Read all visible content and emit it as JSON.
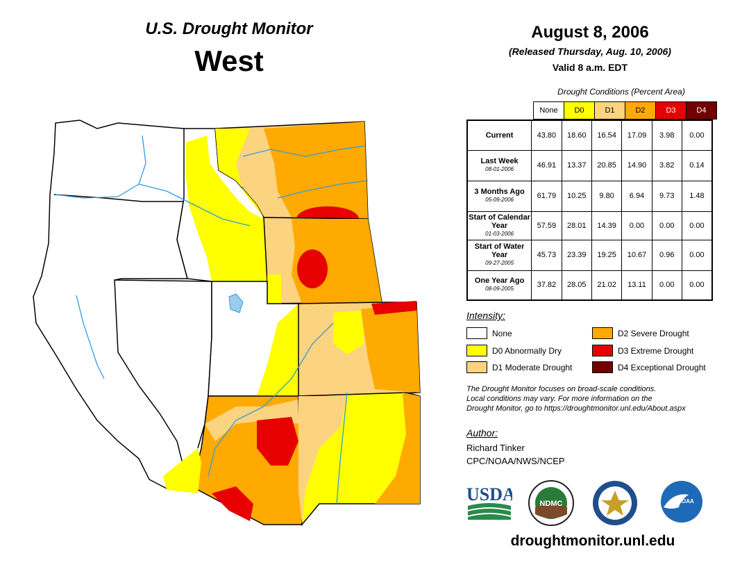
{
  "header": {
    "title": "U.S. Drought Monitor",
    "region": "West",
    "date": "August 8, 2006",
    "released": "(Released Thursday, Aug. 10, 2006)",
    "valid": "Valid 8 a.m. EDT"
  },
  "table": {
    "caption": "Drought Conditions (Percent Area)",
    "columns": [
      "None",
      "D0",
      "D1",
      "D2",
      "D3",
      "D4"
    ],
    "column_colors": [
      "#ffffff",
      "#ffff00",
      "#fcd37f",
      "#ffaa00",
      "#e60000",
      "#730000"
    ],
    "rows": [
      {
        "label": "Current",
        "date": "",
        "values": [
          "43.80",
          "18.60",
          "16.54",
          "17.09",
          "3.98",
          "0.00"
        ]
      },
      {
        "label": "Last Week",
        "date": "08-01-2006",
        "values": [
          "46.91",
          "13.37",
          "20.85",
          "14.90",
          "3.82",
          "0.14"
        ]
      },
      {
        "label": "3 Months Ago",
        "date": "05-09-2006",
        "values": [
          "61.79",
          "10.25",
          "9.80",
          "6.94",
          "9.73",
          "1.48"
        ]
      },
      {
        "label": "Start of Calendar Year",
        "date": "01-03-2006",
        "values": [
          "57.59",
          "28.01",
          "14.39",
          "0.00",
          "0.00",
          "0.00"
        ]
      },
      {
        "label": "Start of Water Year",
        "date": "09-27-2005",
        "values": [
          "45.73",
          "23.39",
          "19.25",
          "10.67",
          "0.96",
          "0.00"
        ]
      },
      {
        "label": "One Year Ago",
        "date": "08-09-2005",
        "values": [
          "37.82",
          "28.05",
          "21.02",
          "13.11",
          "0.00",
          "0.00"
        ]
      }
    ]
  },
  "legend": {
    "title": "Intensity:",
    "items": [
      {
        "label": "None",
        "color": "#ffffff"
      },
      {
        "label": "D0 Abnormally Dry",
        "color": "#ffff00"
      },
      {
        "label": "D1 Moderate Drought",
        "color": "#fcd37f"
      },
      {
        "label": "D2 Severe Drought",
        "color": "#ffaa00"
      },
      {
        "label": "D3 Extreme Drought",
        "color": "#e60000"
      },
      {
        "label": "D4 Exceptional Drought",
        "color": "#730000"
      }
    ]
  },
  "note": {
    "line1": "The Drought Monitor focuses on broad-scale conditions.",
    "line2": "Local conditions may vary. For more information on the",
    "line3": "Drought Monitor, go to https://droughtmonitor.unl.edu/About.aspx"
  },
  "author": {
    "title": "Author:",
    "name": "Richard Tinker",
    "org": "CPC/NOAA/NWS/NCEP"
  },
  "logos": {
    "usda": "USDA",
    "ndmc": "NDMC",
    "noaa": "NOAA"
  },
  "url": "droughtmonitor.unl.edu",
  "colors": {
    "river": "#3399dd",
    "none": "#ffffff",
    "d0": "#ffff00",
    "d1": "#fcd37f",
    "d2": "#ffaa00",
    "d3": "#e60000",
    "d4": "#730000"
  }
}
